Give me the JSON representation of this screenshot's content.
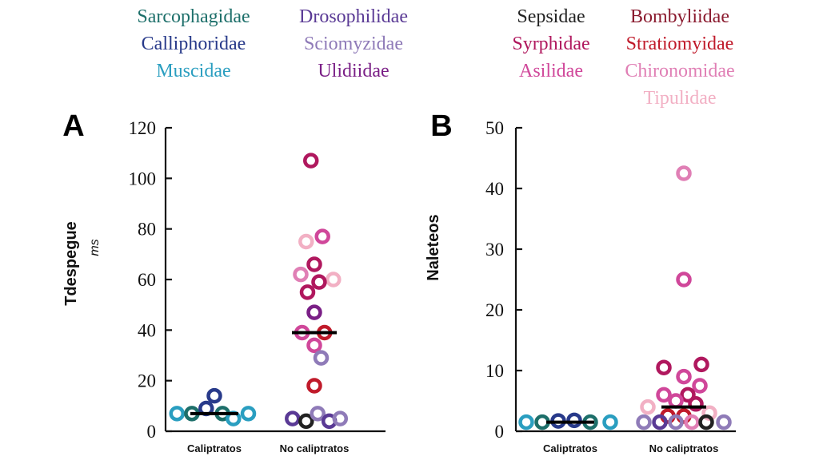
{
  "legend": {
    "calyptrate_families": [
      {
        "name": "Sarcophagidae",
        "color": "#1d6f6a"
      },
      {
        "name": "Calliphoridae",
        "color": "#283a8a"
      },
      {
        "name": "Muscidae",
        "color": "#2a9ec0"
      }
    ],
    "acalyptrate_families": [
      {
        "name": "Drosophilidae",
        "color": "#5a3a95"
      },
      {
        "name": "Sciomyzidae",
        "color": "#8f7bb8"
      },
      {
        "name": "Ulidiidae",
        "color": "#7a1f86"
      }
    ],
    "lower_families_1": [
      {
        "name": "Sepsidae",
        "color": "#222222"
      },
      {
        "name": "Syrphidae",
        "color": "#b0185e"
      },
      {
        "name": "Asilidae",
        "color": "#d0479a"
      }
    ],
    "lower_families_2": [
      {
        "name": "Bombyliidae",
        "color": "#8a1a2e"
      },
      {
        "name": "Stratiomyidae",
        "color": "#c01a2a"
      },
      {
        "name": "Chironomidae",
        "color": "#e07fb5"
      },
      {
        "name": "Tipulidae",
        "color": "#f2b0c4"
      }
    ]
  },
  "chart_data": [
    {
      "panel_label": "A",
      "type": "scatter",
      "ylabel": "Tdespegue",
      "yunit": "ms",
      "ylim": [
        0,
        120
      ],
      "yticks": [
        0,
        20,
        40,
        60,
        80,
        100,
        120
      ],
      "categories": [
        "Caliptratos",
        "No caliptratos"
      ],
      "medians": [
        7,
        39
      ],
      "points": [
        {
          "category": 0,
          "offset": -0.55,
          "y": 7,
          "color": "#2a9ec0"
        },
        {
          "category": 0,
          "offset": -0.33,
          "y": 7,
          "color": "#1d6f6a"
        },
        {
          "category": 0,
          "offset": -0.12,
          "y": 9,
          "color": "#283a8a"
        },
        {
          "category": 0,
          "offset": 0.0,
          "y": 14,
          "color": "#283a8a"
        },
        {
          "category": 0,
          "offset": 0.12,
          "y": 7,
          "color": "#1d6f6a"
        },
        {
          "category": 0,
          "offset": 0.28,
          "y": 5,
          "color": "#2a9ec0"
        },
        {
          "category": 0,
          "offset": 0.5,
          "y": 7,
          "color": "#2a9ec0"
        },
        {
          "category": 1,
          "offset": -0.05,
          "y": 107,
          "color": "#b0185e"
        },
        {
          "category": 1,
          "offset": 0.12,
          "y": 77,
          "color": "#d0479a"
        },
        {
          "category": 1,
          "offset": -0.12,
          "y": 75,
          "color": "#f2b0c4"
        },
        {
          "category": 1,
          "offset": 0.0,
          "y": 66,
          "color": "#b0185e"
        },
        {
          "category": 1,
          "offset": -0.2,
          "y": 62,
          "color": "#e07fb5"
        },
        {
          "category": 1,
          "offset": 0.28,
          "y": 60,
          "color": "#f2b0c4"
        },
        {
          "category": 1,
          "offset": 0.07,
          "y": 59,
          "color": "#b0185e"
        },
        {
          "category": 1,
          "offset": -0.1,
          "y": 55,
          "color": "#b0185e"
        },
        {
          "category": 1,
          "offset": 0.0,
          "y": 47,
          "color": "#7a1f86"
        },
        {
          "category": 1,
          "offset": -0.18,
          "y": 39,
          "color": "#d0479a"
        },
        {
          "category": 1,
          "offset": 0.15,
          "y": 39,
          "color": "#c01a2a"
        },
        {
          "category": 1,
          "offset": 0.0,
          "y": 34,
          "color": "#d0479a"
        },
        {
          "category": 1,
          "offset": 0.1,
          "y": 29,
          "color": "#8f7bb8"
        },
        {
          "category": 1,
          "offset": 0.0,
          "y": 18,
          "color": "#c01a2a"
        },
        {
          "category": 1,
          "offset": -0.32,
          "y": 5,
          "color": "#5a3a95"
        },
        {
          "category": 1,
          "offset": -0.12,
          "y": 4,
          "color": "#222222"
        },
        {
          "category": 1,
          "offset": 0.05,
          "y": 7,
          "color": "#8f7bb8"
        },
        {
          "category": 1,
          "offset": 0.22,
          "y": 4,
          "color": "#5a3a95"
        },
        {
          "category": 1,
          "offset": 0.38,
          "y": 5,
          "color": "#8f7bb8"
        }
      ]
    },
    {
      "panel_label": "B",
      "type": "scatter",
      "ylabel": "Naleteos",
      "yunit": "",
      "ylim": [
        0,
        50
      ],
      "yticks": [
        0,
        10,
        20,
        30,
        40,
        50
      ],
      "categories": [
        "Caliptratos",
        "No caliptratos"
      ],
      "medians": [
        1.5,
        4
      ],
      "points": [
        {
          "category": 0,
          "offset": -0.55,
          "y": 1.5,
          "color": "#2a9ec0"
        },
        {
          "category": 0,
          "offset": -0.35,
          "y": 1.5,
          "color": "#1d6f6a"
        },
        {
          "category": 0,
          "offset": -0.15,
          "y": 1.7,
          "color": "#283a8a"
        },
        {
          "category": 0,
          "offset": 0.05,
          "y": 1.8,
          "color": "#283a8a"
        },
        {
          "category": 0,
          "offset": 0.25,
          "y": 1.5,
          "color": "#1d6f6a"
        },
        {
          "category": 0,
          "offset": 0.5,
          "y": 1.5,
          "color": "#2a9ec0"
        },
        {
          "category": 1,
          "offset": 0.0,
          "y": 42.5,
          "color": "#e07fb5"
        },
        {
          "category": 1,
          "offset": 0.0,
          "y": 25,
          "color": "#d0479a"
        },
        {
          "category": 1,
          "offset": -0.25,
          "y": 10.5,
          "color": "#b0185e"
        },
        {
          "category": 1,
          "offset": 0.22,
          "y": 11,
          "color": "#b0185e"
        },
        {
          "category": 1,
          "offset": 0.0,
          "y": 9,
          "color": "#d0479a"
        },
        {
          "category": 1,
          "offset": 0.2,
          "y": 7.5,
          "color": "#d0479a"
        },
        {
          "category": 1,
          "offset": -0.25,
          "y": 6,
          "color": "#d0479a"
        },
        {
          "category": 1,
          "offset": 0.05,
          "y": 6,
          "color": "#b0185e"
        },
        {
          "category": 1,
          "offset": -0.1,
          "y": 5,
          "color": "#d0479a"
        },
        {
          "category": 1,
          "offset": 0.15,
          "y": 4.5,
          "color": "#b0185e"
        },
        {
          "category": 1,
          "offset": -0.45,
          "y": 4,
          "color": "#f2b0c4"
        },
        {
          "category": 1,
          "offset": 0.32,
          "y": 3,
          "color": "#f2b0c4"
        },
        {
          "category": 1,
          "offset": -0.2,
          "y": 2.5,
          "color": "#c01a2a"
        },
        {
          "category": 1,
          "offset": 0.0,
          "y": 2.5,
          "color": "#c01a2a"
        },
        {
          "category": 1,
          "offset": -0.5,
          "y": 1.5,
          "color": "#8f7bb8"
        },
        {
          "category": 1,
          "offset": -0.3,
          "y": 1.5,
          "color": "#5a3a95"
        },
        {
          "category": 1,
          "offset": -0.1,
          "y": 1.5,
          "color": "#8f7bb8"
        },
        {
          "category": 1,
          "offset": 0.1,
          "y": 1.5,
          "color": "#e07fb5"
        },
        {
          "category": 1,
          "offset": 0.28,
          "y": 1.5,
          "color": "#222222"
        },
        {
          "category": 1,
          "offset": 0.5,
          "y": 1.5,
          "color": "#8f7bb8"
        }
      ]
    }
  ]
}
